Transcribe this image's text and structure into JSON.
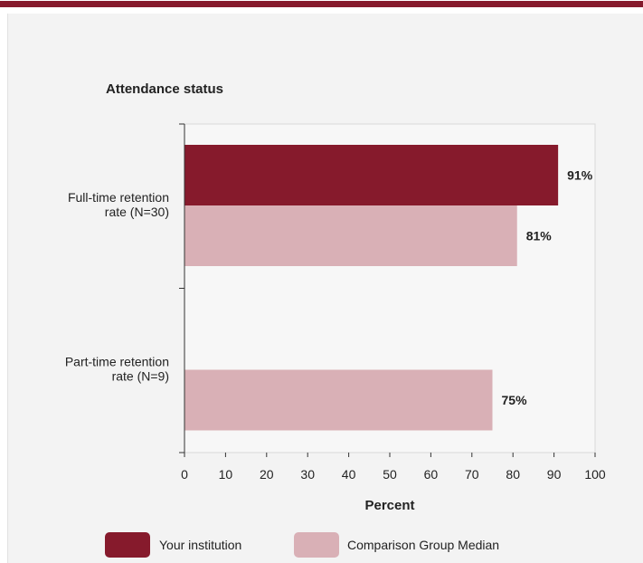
{
  "chart_data": {
    "type": "bar",
    "orientation": "horizontal",
    "title": "Attendance status",
    "xlabel": "Percent",
    "ylabel": "",
    "xlim": [
      0,
      100
    ],
    "xticks": [
      "0",
      "10",
      "20",
      "30",
      "40",
      "50",
      "60",
      "70",
      "80",
      "90",
      "100"
    ],
    "categories": [
      "Full-time retention rate (N=30)",
      "Part-time retention rate (N=9)"
    ],
    "category_lines": [
      [
        "Full-time retention",
        "rate (N=30)"
      ],
      [
        "Part-time retention",
        "rate (N=9)"
      ]
    ],
    "series": [
      {
        "name": "Your institution",
        "values": [
          91,
          null
        ],
        "labels": [
          "91%",
          ""
        ],
        "color": "#861a2c"
      },
      {
        "name": "Comparison Group Median",
        "values": [
          81,
          75
        ],
        "labels": [
          "81%",
          "75%"
        ],
        "color": "#d9b0b6"
      }
    ],
    "grid": true,
    "legend_position": "bottom"
  }
}
